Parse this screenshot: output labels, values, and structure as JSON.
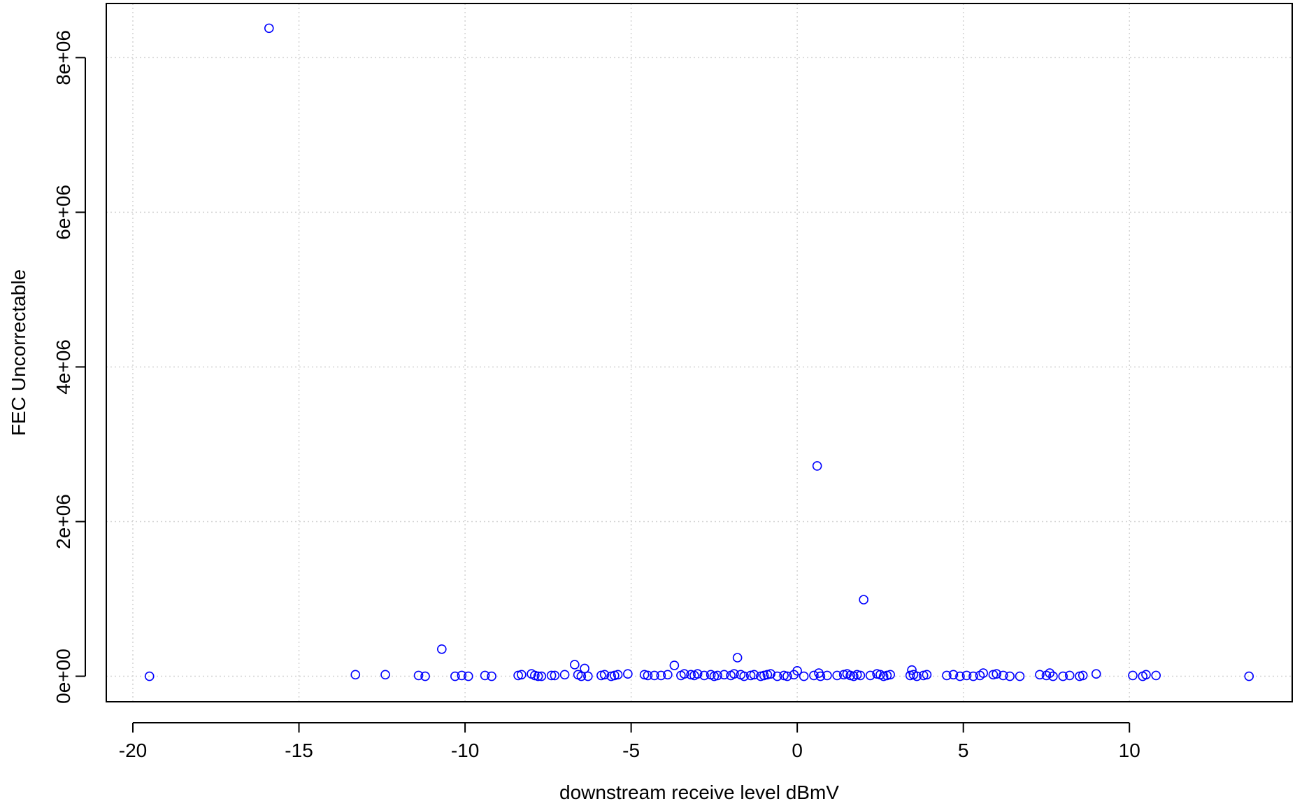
{
  "chart_data": {
    "type": "scatter",
    "xlabel": "downstream receive level dBmV",
    "ylabel": "FEC Uncorrectable",
    "xlim": [
      -20.8,
      14.9
    ],
    "ylim": [
      -330000,
      8700000
    ],
    "grid": true,
    "x_ticks": [
      -20,
      -15,
      -10,
      -5,
      0,
      5,
      10
    ],
    "x_tick_labels": [
      "-20",
      "-15",
      "-10",
      "-5",
      "0",
      "5",
      "10"
    ],
    "y_ticks": [
      0,
      2000000,
      4000000,
      6000000,
      8000000
    ],
    "y_tick_labels": [
      "0e+00",
      "2e+06",
      "4e+06",
      "6e+06",
      "8e+06"
    ],
    "point_color": "#0000ff",
    "points": [
      [
        -19.5,
        0
      ],
      [
        -15.9,
        8380000
      ],
      [
        -13.3,
        20000
      ],
      [
        -12.4,
        20000
      ],
      [
        -11.4,
        10000
      ],
      [
        -11.2,
        0
      ],
      [
        -10.7,
        350000
      ],
      [
        -10.3,
        0
      ],
      [
        -10.1,
        10000
      ],
      [
        -9.9,
        0
      ],
      [
        -9.4,
        10000
      ],
      [
        -9.2,
        0
      ],
      [
        -8.4,
        10000
      ],
      [
        -8.3,
        20000
      ],
      [
        -8.0,
        30000
      ],
      [
        -7.9,
        10000
      ],
      [
        -7.8,
        0
      ],
      [
        -7.7,
        0
      ],
      [
        -7.4,
        10000
      ],
      [
        -7.3,
        10000
      ],
      [
        -7.0,
        20000
      ],
      [
        -6.7,
        150000
      ],
      [
        -6.6,
        20000
      ],
      [
        -6.5,
        0
      ],
      [
        -6.4,
        100000
      ],
      [
        -6.3,
        0
      ],
      [
        -5.9,
        10000
      ],
      [
        -5.8,
        20000
      ],
      [
        -5.6,
        0
      ],
      [
        -5.5,
        10000
      ],
      [
        -5.4,
        20000
      ],
      [
        -5.1,
        30000
      ],
      [
        -4.6,
        20000
      ],
      [
        -4.5,
        10000
      ],
      [
        -4.3,
        10000
      ],
      [
        -4.1,
        10000
      ],
      [
        -3.9,
        20000
      ],
      [
        -3.7,
        140000
      ],
      [
        -3.5,
        10000
      ],
      [
        -3.4,
        30000
      ],
      [
        -3.2,
        20000
      ],
      [
        -3.1,
        10000
      ],
      [
        -3.0,
        30000
      ],
      [
        -2.8,
        10000
      ],
      [
        -2.6,
        20000
      ],
      [
        -2.5,
        0
      ],
      [
        -2.4,
        10000
      ],
      [
        -2.2,
        20000
      ],
      [
        -2.0,
        10000
      ],
      [
        -1.9,
        30000
      ],
      [
        -1.8,
        240000
      ],
      [
        -1.7,
        20000
      ],
      [
        -1.6,
        0
      ],
      [
        -1.4,
        10000
      ],
      [
        -1.3,
        20000
      ],
      [
        -1.1,
        0
      ],
      [
        -1.0,
        10000
      ],
      [
        -0.9,
        20000
      ],
      [
        -0.8,
        30000
      ],
      [
        -0.6,
        0
      ],
      [
        -0.4,
        10000
      ],
      [
        -0.3,
        0
      ],
      [
        -0.1,
        20000
      ],
      [
        0.0,
        70000
      ],
      [
        0.2,
        0
      ],
      [
        0.5,
        10000
      ],
      [
        0.6,
        2720000
      ],
      [
        0.65,
        40000
      ],
      [
        0.7,
        0
      ],
      [
        0.9,
        10000
      ],
      [
        1.2,
        10000
      ],
      [
        1.4,
        20000
      ],
      [
        1.5,
        30000
      ],
      [
        1.6,
        10000
      ],
      [
        1.7,
        0
      ],
      [
        1.8,
        20000
      ],
      [
        1.9,
        10000
      ],
      [
        2.0,
        990000
      ],
      [
        2.2,
        10000
      ],
      [
        2.4,
        30000
      ],
      [
        2.5,
        20000
      ],
      [
        2.6,
        0
      ],
      [
        2.7,
        10000
      ],
      [
        2.8,
        20000
      ],
      [
        3.4,
        10000
      ],
      [
        3.45,
        80000
      ],
      [
        3.5,
        20000
      ],
      [
        3.6,
        0
      ],
      [
        3.8,
        10000
      ],
      [
        3.9,
        20000
      ],
      [
        4.5,
        10000
      ],
      [
        4.7,
        20000
      ],
      [
        4.9,
        0
      ],
      [
        5.1,
        10000
      ],
      [
        5.3,
        0
      ],
      [
        5.5,
        10000
      ],
      [
        5.6,
        40000
      ],
      [
        5.9,
        20000
      ],
      [
        6.0,
        30000
      ],
      [
        6.2,
        10000
      ],
      [
        6.4,
        0
      ],
      [
        6.7,
        0
      ],
      [
        7.3,
        20000
      ],
      [
        7.5,
        10000
      ],
      [
        7.6,
        40000
      ],
      [
        7.7,
        0
      ],
      [
        8.0,
        0
      ],
      [
        8.2,
        10000
      ],
      [
        8.5,
        0
      ],
      [
        8.6,
        10000
      ],
      [
        9.0,
        30000
      ],
      [
        10.1,
        10000
      ],
      [
        10.4,
        0
      ],
      [
        10.5,
        20000
      ],
      [
        10.8,
        10000
      ],
      [
        13.6,
        0
      ]
    ]
  }
}
